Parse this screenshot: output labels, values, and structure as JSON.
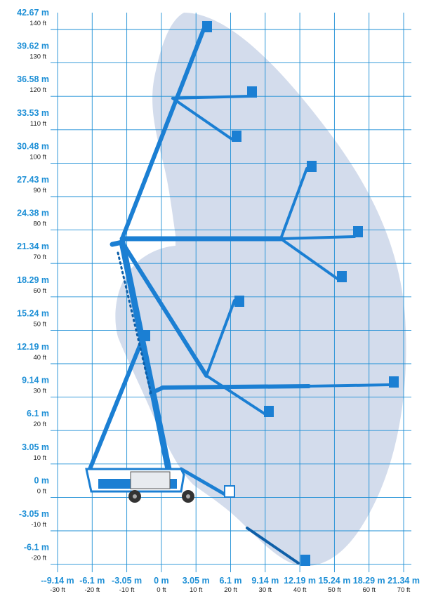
{
  "colors": {
    "grid": "#1e8fd6",
    "envelope": "#d3dcec",
    "boom": "#1b7fd3",
    "boom_dark": "#0e5fa8",
    "metric_label": "#1d8fd6",
    "imperial_label": "#222222"
  },
  "y_axis": {
    "metric": [
      "42.67 m",
      "39.62 m",
      "36.58 m",
      "33.53 m",
      "30.48 m",
      "27.43 m",
      "24.38 m",
      "21.34 m",
      "18.29 m",
      "15.24 m",
      "12.19 m",
      "9.14 m",
      "6.1 m",
      "3.05 m",
      "0 m",
      "-3.05 m",
      "-6.1 m"
    ],
    "imperial": [
      "140 ft",
      "130 ft",
      "120 ft",
      "110 ft",
      "100 ft",
      "90 ft",
      "80 ft",
      "70 ft",
      "60 ft",
      "50 ft",
      "40 ft",
      "30 ft",
      "20 ft",
      "10 ft",
      "0 ft",
      "-10 ft",
      "-20 ft"
    ]
  },
  "x_axis": {
    "metric": [
      "--9.14 m",
      "-6.1 m",
      "-3.05 m",
      "0 m",
      "3.05 m",
      "6.1 m",
      "9.14 m",
      "12.19 m",
      "15.24 m",
      "18.29 m",
      "21.34 m"
    ],
    "imperial": [
      "-30 ft",
      "-20 ft",
      "-10 ft",
      "0 ft",
      "10 ft",
      "20 ft",
      "30 ft",
      "40 ft",
      "50 ft",
      "60 ft",
      "70 ft"
    ]
  }
}
